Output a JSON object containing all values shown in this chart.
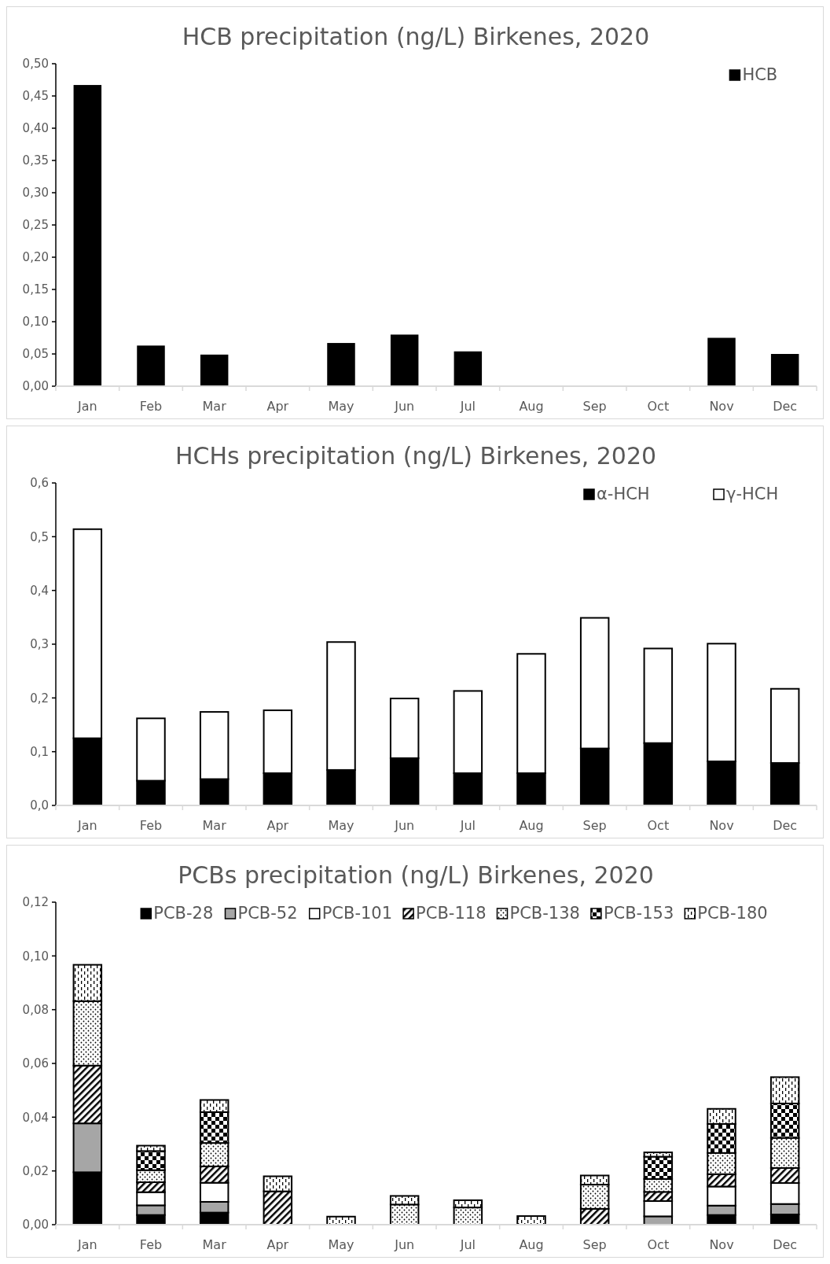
{
  "chart_data": [
    {
      "type": "bar",
      "title": "HCB precipitation (ng/L) Birkenes, 2020",
      "categories": [
        "Jan",
        "Feb",
        "Mar",
        "Apr",
        "May",
        "Jun",
        "Jul",
        "Aug",
        "Sep",
        "Oct",
        "Nov",
        "Dec"
      ],
      "series": [
        {
          "name": "HCB",
          "color": "#000000",
          "values": [
            0.467,
            0.063,
            0.049,
            null,
            0.067,
            0.08,
            0.054,
            null,
            null,
            null,
            0.075,
            0.05
          ]
        }
      ],
      "ylim": [
        0,
        0.5
      ],
      "yticks": [
        {
          "value": 0,
          "label": "0,00"
        },
        {
          "value": 0.05,
          "label": "0,05"
        },
        {
          "value": 0.1,
          "label": "0,10"
        },
        {
          "value": 0.15,
          "label": "0,15"
        },
        {
          "value": 0.2,
          "label": "0,20"
        },
        {
          "value": 0.25,
          "label": "0,25"
        },
        {
          "value": 0.3,
          "label": "0,30"
        },
        {
          "value": 0.35,
          "label": "0,35"
        },
        {
          "value": 0.4,
          "label": "0,40"
        },
        {
          "value": 0.45,
          "label": "0,45"
        },
        {
          "value": 0.5,
          "label": "0,50"
        }
      ],
      "grid": false,
      "legend": "top right"
    },
    {
      "type": "bar",
      "title": "HCHs precipitation (ng/L) Birkenes, 2020",
      "categories": [
        "Jan",
        "Feb",
        "Mar",
        "Apr",
        "May",
        "Jun",
        "Jul",
        "Aug",
        "Sep",
        "Oct",
        "Nov",
        "Dec"
      ],
      "stacked": true,
      "series": [
        {
          "name": "α-HCH",
          "color": "#000000",
          "values": [
            0.125,
            0.046,
            0.049,
            0.06,
            0.066,
            0.088,
            0.06,
            0.06,
            0.106,
            0.116,
            0.082,
            0.079
          ]
        },
        {
          "name": "γ-HCH",
          "color": "#ffffff",
          "values": [
            0.389,
            0.116,
            0.125,
            0.117,
            0.238,
            0.111,
            0.153,
            0.222,
            0.243,
            0.176,
            0.219,
            0.138
          ]
        }
      ],
      "ylim": [
        0,
        0.6
      ],
      "yticks": [
        {
          "value": 0,
          "label": "0,0"
        },
        {
          "value": 0.1,
          "label": "0,1"
        },
        {
          "value": 0.2,
          "label": "0,2"
        },
        {
          "value": 0.3,
          "label": "0,3"
        },
        {
          "value": 0.4,
          "label": "0,4"
        },
        {
          "value": 0.5,
          "label": "0,5"
        },
        {
          "value": 0.6,
          "label": "0,6"
        }
      ],
      "grid": false,
      "legend": "top right"
    },
    {
      "type": "bar",
      "title": "PCBs precipitation (ng/L) Birkenes, 2020",
      "categories": [
        "Jan",
        "Feb",
        "Mar",
        "Apr",
        "May",
        "Jun",
        "Jul",
        "Aug",
        "Sep",
        "Oct",
        "Nov",
        "Dec"
      ],
      "stacked": true,
      "series": [
        {
          "name": "PCB-28",
          "color": "#000000",
          "values": [
            0.0195,
            0.0036,
            0.0045,
            null,
            null,
            null,
            null,
            null,
            null,
            null,
            0.0036,
            0.0038
          ]
        },
        {
          "name": "PCB-52",
          "color": "#a6a6a6",
          "values": [
            0.0182,
            0.0036,
            0.004,
            null,
            null,
            null,
            null,
            null,
            null,
            0.0031,
            0.0035,
            0.0039
          ]
        },
        {
          "name": "PCB-101",
          "color": "#ffffff",
          "values": [
            null,
            0.0049,
            0.0071,
            null,
            null,
            null,
            null,
            null,
            null,
            0.0057,
            0.0071,
            0.0078
          ]
        },
        {
          "name": "PCB-118",
          "color": "#000000",
          "values": [
            0.0215,
            0.0037,
            0.0061,
            0.0124,
            null,
            null,
            null,
            null,
            0.0059,
            0.0034,
            0.0046,
            0.0056
          ]
        },
        {
          "name": "PCB-138",
          "color": "#000000",
          "values": [
            0.024,
            0.0045,
            0.0087,
            null,
            null,
            0.0075,
            0.0064,
            null,
            0.009,
            0.0048,
            0.0079,
            0.0112
          ]
        },
        {
          "name": "PCB-153",
          "color": "#000000",
          "values": [
            null,
            0.0071,
            0.0115,
            null,
            null,
            null,
            null,
            null,
            null,
            0.0083,
            0.0108,
            0.0128
          ]
        },
        {
          "name": "PCB-180",
          "color": "#000000",
          "values": [
            0.0135,
            0.002,
            0.0045,
            0.0056,
            0.003,
            0.0032,
            0.0027,
            0.0032,
            0.0034,
            0.0016,
            0.0056,
            0.0098
          ]
        }
      ],
      "ylim": [
        0,
        0.12
      ],
      "yticks": [
        {
          "value": 0,
          "label": "0,00"
        },
        {
          "value": 0.02,
          "label": "0,02"
        },
        {
          "value": 0.04,
          "label": "0,04"
        },
        {
          "value": 0.06,
          "label": "0,06"
        },
        {
          "value": 0.08,
          "label": "0,08"
        },
        {
          "value": 0.1,
          "label": "0,10"
        },
        {
          "value": 0.12,
          "label": "0,12"
        }
      ],
      "grid": false,
      "legend": "top"
    }
  ]
}
